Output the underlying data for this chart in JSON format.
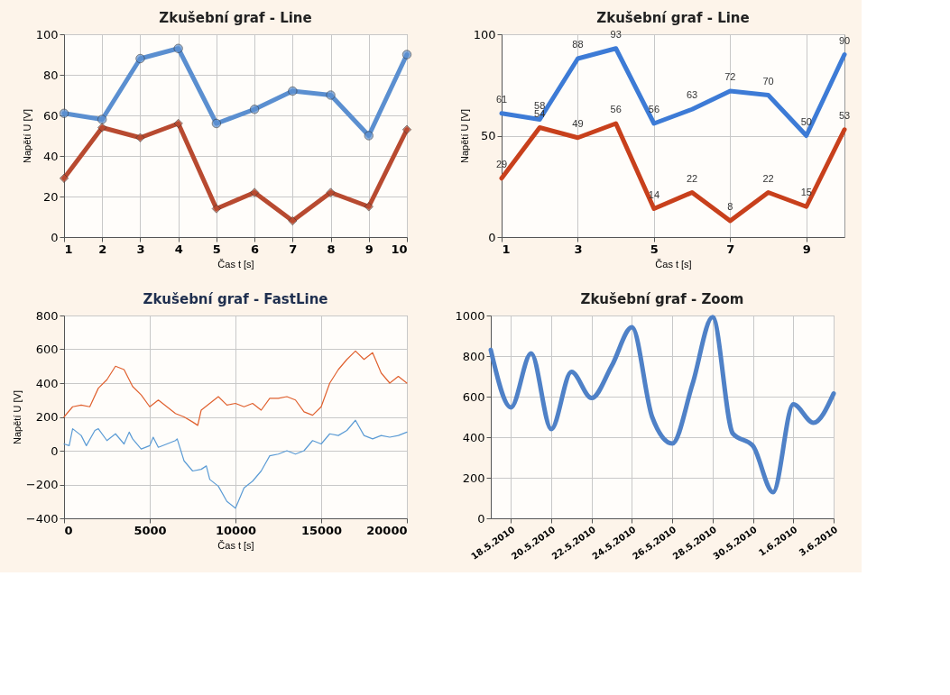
{
  "chart_data": [
    {
      "type": "line",
      "title": "Zkušební graf - Line",
      "xlabel": "Čas t [s]",
      "ylabel": "Napětí U [V]",
      "x": [
        1,
        2,
        3,
        4,
        5,
        6,
        7,
        8,
        9,
        10
      ],
      "xlim": [
        1,
        10
      ],
      "xticks": [
        1,
        2,
        3,
        4,
        5,
        6,
        7,
        8,
        9,
        10
      ],
      "ylim": [
        0,
        100
      ],
      "yticks": [
        0,
        20,
        40,
        60,
        80,
        100
      ],
      "grid": true,
      "series": [
        {
          "color": "#5b8fd0",
          "marker": "circle",
          "values": [
            61,
            58,
            88,
            93,
            56,
            63,
            72,
            70,
            50,
            90
          ]
        },
        {
          "color": "#b84a30",
          "marker": "diamond",
          "values": [
            29,
            54,
            49,
            56,
            14,
            22,
            8,
            22,
            15,
            53
          ]
        }
      ]
    },
    {
      "type": "line",
      "title": "Zkušební graf - Line",
      "xlabel": "Čas t [s]",
      "ylabel": "Napětí U [V]",
      "x": [
        1,
        2,
        3,
        4,
        5,
        6,
        7,
        8,
        9,
        10
      ],
      "xlim": [
        1,
        10
      ],
      "xticks": [
        1,
        3,
        5,
        7,
        9
      ],
      "ylim": [
        0,
        100
      ],
      "yticks": [
        0,
        50,
        100
      ],
      "grid": true,
      "data_labels": true,
      "series": [
        {
          "color": "#3d7bd6",
          "values": [
            61,
            58,
            88,
            93,
            56,
            63,
            72,
            70,
            50,
            90
          ]
        },
        {
          "color": "#c8401c",
          "values": [
            29,
            54,
            49,
            56,
            14,
            22,
            8,
            22,
            15,
            53
          ]
        }
      ]
    },
    {
      "type": "line",
      "title": "Zkušební graf - FastLine",
      "xlabel": "Čas t [s]",
      "ylabel": "Napětí U [V]",
      "xlim": [
        0,
        20000
      ],
      "xticks": [
        0,
        5000,
        10000,
        15000,
        20000
      ],
      "ylim": [
        -400,
        800
      ],
      "yticks": [
        -400,
        -200,
        0,
        200,
        400,
        600,
        800
      ],
      "grid": true,
      "series": [
        {
          "color": "#e0612f",
          "x": [
            0,
            500,
            1000,
            1500,
            2000,
            2500,
            3000,
            3500,
            4000,
            4500,
            5000,
            5500,
            6000,
            6500,
            7000,
            7500,
            7800,
            8000,
            8500,
            9000,
            9500,
            10000,
            10500,
            11000,
            11500,
            12000,
            12500,
            13000,
            13500,
            14000,
            14500,
            15000,
            15500,
            16000,
            16500,
            17000,
            17500,
            18000,
            18500,
            19000,
            19500,
            20000
          ],
          "values": [
            200,
            260,
            270,
            260,
            370,
            420,
            500,
            480,
            380,
            330,
            260,
            300,
            260,
            220,
            200,
            170,
            150,
            240,
            280,
            320,
            270,
            280,
            260,
            280,
            240,
            310,
            310,
            320,
            300,
            230,
            210,
            260,
            400,
            480,
            540,
            590,
            540,
            580,
            460,
            400,
            440,
            400
          ]
        },
        {
          "color": "#5b9bd5",
          "x": [
            0,
            300,
            500,
            1000,
            1300,
            1800,
            2000,
            2500,
            3000,
            3500,
            3800,
            4000,
            4500,
            5000,
            5200,
            5500,
            6000,
            6500,
            6600,
            7000,
            7500,
            8000,
            8300,
            8500,
            9000,
            9500,
            10000,
            10500,
            11000,
            11500,
            12000,
            12500,
            13000,
            13500,
            14000,
            14500,
            15000,
            15500,
            16000,
            16500,
            17000,
            17500,
            18000,
            18500,
            19000,
            19500,
            20000
          ],
          "values": [
            40,
            30,
            130,
            90,
            30,
            120,
            130,
            60,
            100,
            40,
            110,
            70,
            10,
            30,
            80,
            20,
            40,
            60,
            70,
            -60,
            -120,
            -110,
            -90,
            -170,
            -210,
            -300,
            -340,
            -220,
            -180,
            -120,
            -30,
            -20,
            0,
            -20,
            0,
            60,
            40,
            100,
            90,
            120,
            180,
            90,
            70,
            90,
            80,
            90,
            110
          ]
        }
      ]
    },
    {
      "type": "line",
      "title": "Zkušební graf - Zoom",
      "x": [
        "2010-05-17",
        "2010-05-18",
        "2010-05-19",
        "2010-05-20",
        "2010-05-21",
        "2010-05-22",
        "2010-05-23",
        "2010-05-24",
        "2010-05-25",
        "2010-05-26",
        "2010-05-27",
        "2010-05-28",
        "2010-05-29",
        "2010-05-30",
        "2010-05-31",
        "2010-06-01",
        "2010-06-02",
        "2010-06-03"
      ],
      "xlim": [
        "2010-05-17",
        "2010-06-03"
      ],
      "xticks": [
        {
          "value": "2010-05-18",
          "label": "18.5.2010"
        },
        {
          "value": "2010-05-20",
          "label": "20.5.2010"
        },
        {
          "value": "2010-05-22",
          "label": "22.5.2010"
        },
        {
          "value": "2010-05-24",
          "label": "24.5.2010"
        },
        {
          "value": "2010-05-26",
          "label": "26.5.2010"
        },
        {
          "value": "2010-05-28",
          "label": "28.5.2010"
        },
        {
          "value": "2010-05-30",
          "label": "30.5.2010"
        },
        {
          "value": "2010-06-01",
          "label": "1.6.2010"
        },
        {
          "value": "2010-06-03",
          "label": "3.6.2010"
        }
      ],
      "ylim": [
        0,
        1000
      ],
      "yticks": [
        0,
        200,
        400,
        600,
        800,
        1000
      ],
      "grid": true,
      "series": [
        {
          "color": "#4f81c7",
          "values": [
            830,
            547,
            813,
            440,
            722,
            593,
            752,
            942,
            500,
            369,
            661,
            992,
            418,
            357,
            129,
            562,
            471,
            615
          ]
        }
      ]
    }
  ]
}
